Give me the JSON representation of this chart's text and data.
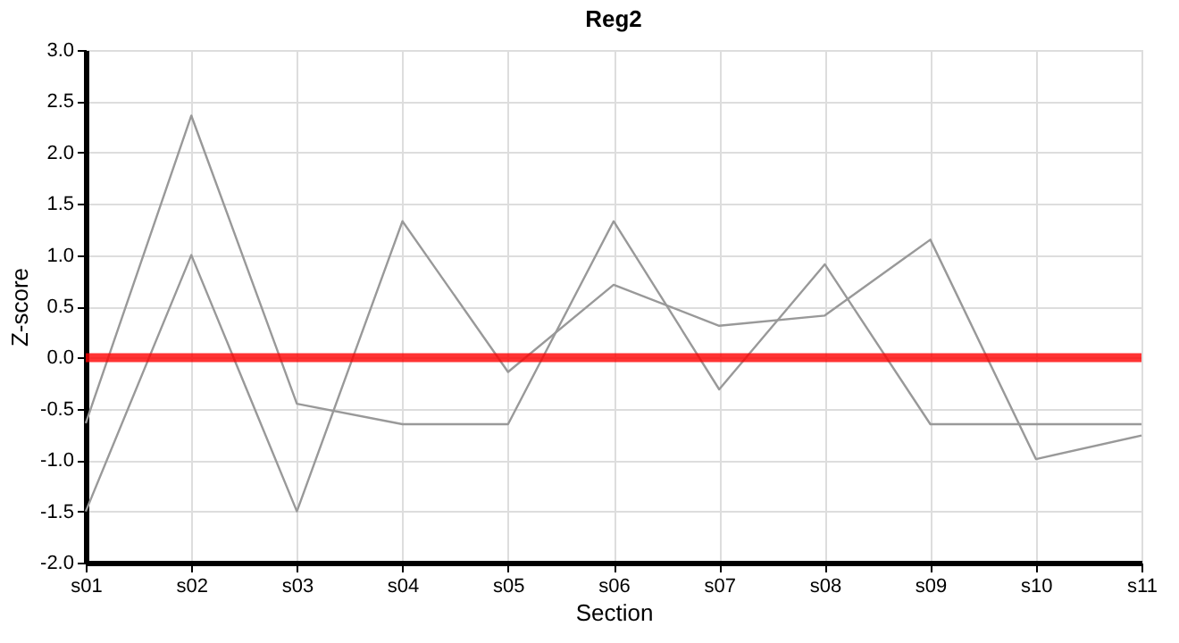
{
  "chart_data": {
    "type": "line",
    "title": "Reg2",
    "xlabel": "Section",
    "ylabel": "Z-score",
    "categories": [
      "s01",
      "s02",
      "s03",
      "s04",
      "s05",
      "s06",
      "s07",
      "s08",
      "s09",
      "s10",
      "s11"
    ],
    "series": [
      {
        "color": "#999999",
        "values": [
          -0.64,
          2.36,
          -0.45,
          -0.65,
          -0.65,
          1.33,
          -0.31,
          0.91,
          -0.65,
          -0.65,
          -0.65
        ]
      },
      {
        "color": "#999999",
        "values": [
          -1.5,
          1.0,
          -1.5,
          1.33,
          -0.14,
          0.71,
          0.31,
          0.41,
          1.15,
          -0.99,
          -0.76
        ]
      }
    ],
    "ylim": [
      -2.0,
      3.0
    ],
    "yticks": [
      {
        "value": -2,
        "label": "-2.0"
      },
      {
        "value": -1.5,
        "label": "-1.5"
      },
      {
        "value": -1,
        "label": "-1.0"
      },
      {
        "value": -0.5,
        "label": "-0.5"
      },
      {
        "value": 0,
        "label": "0.0"
      },
      {
        "value": 0.5,
        "label": "0.5"
      },
      {
        "value": 1,
        "label": "1.0"
      },
      {
        "value": 1.5,
        "label": "1.5"
      },
      {
        "value": 2,
        "label": "2.0"
      },
      {
        "value": 2.5,
        "label": "2.5"
      },
      {
        "value": 3,
        "label": "3.0"
      }
    ],
    "ref_lines": [
      {
        "axis": "y",
        "value": 0,
        "color": "#ff0000"
      }
    ],
    "grid": true,
    "marker": "none",
    "line_style": "solid"
  }
}
